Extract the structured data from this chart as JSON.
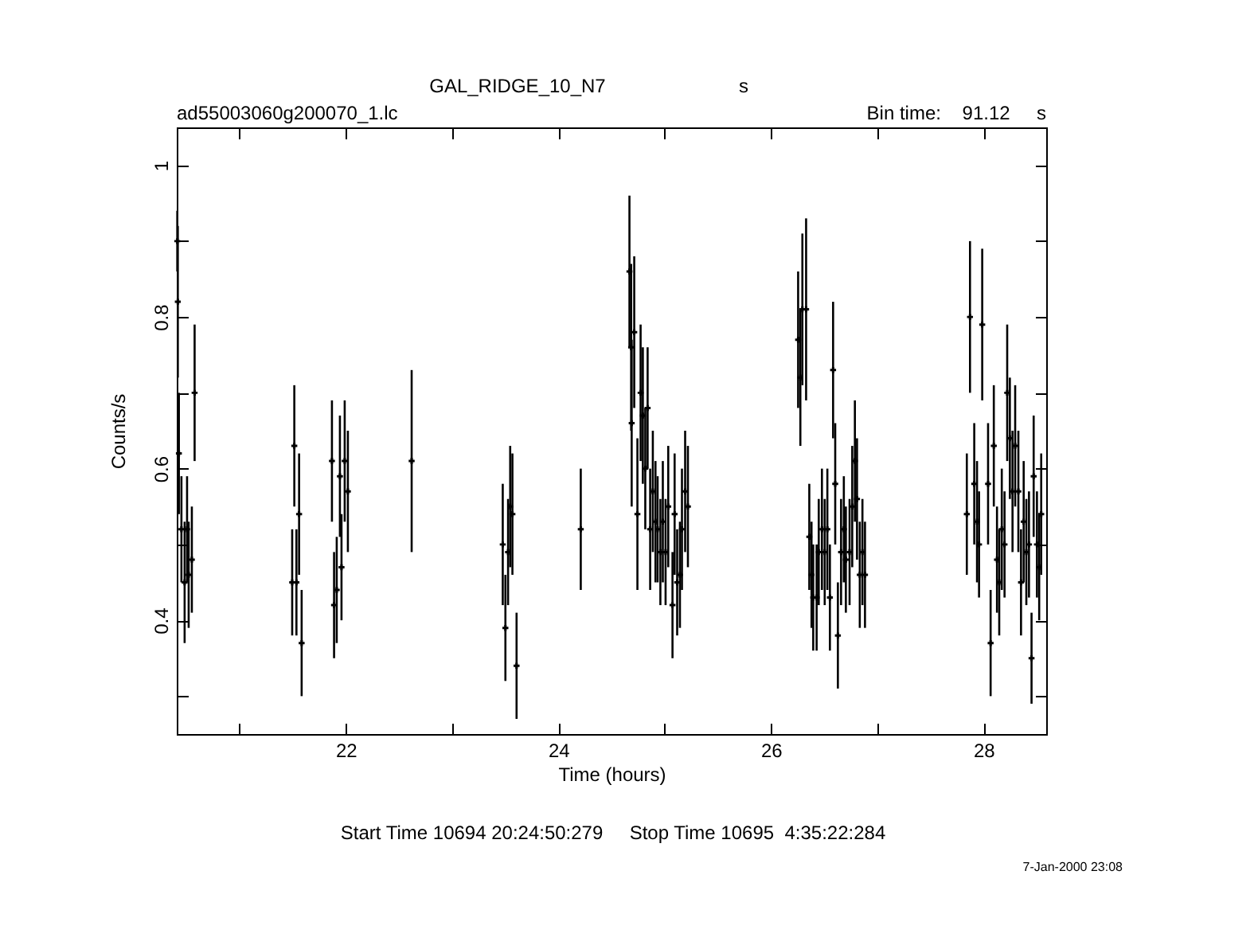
{
  "chart_data": {
    "type": "scatter",
    "title": "GAL_RIDGE_10_N7",
    "subtitle": "ad55003060g200070_1.lc",
    "xlabel": "Time (hours)",
    "ylabel": "Counts/s",
    "annotations": [
      "s",
      "Bin time:    91.12     s",
      "Start Time 10694 20:24:50:279     Stop Time 10695  4:35:22:284",
      "7-Jan-2000 23:08"
    ],
    "xlim": [
      20.41,
      28.59
    ],
    "ylim": [
      0.25,
      1.05
    ],
    "xticks": [
      {
        "value": 21,
        "label": null
      },
      22,
      {
        "value": 23,
        "label": null
      },
      24,
      {
        "value": 25,
        "label": null
      },
      26,
      {
        "value": 27,
        "label": null
      },
      28
    ],
    "yticks": [
      {
        "value": 0.3,
        "label": null
      },
      0.4,
      {
        "value": 0.5,
        "label": null
      },
      0.6,
      {
        "value": 0.7,
        "label": null
      },
      0.8,
      {
        "value": 0.9,
        "label": null
      },
      1
    ],
    "marker": "cross",
    "grid": false,
    "series": [
      {
        "color": "#000000",
        "x": [
          20.415,
          20.42,
          20.43,
          20.454,
          20.484,
          20.507,
          20.522,
          20.552,
          20.578,
          21.496,
          21.516,
          21.536,
          21.561,
          21.585,
          21.87,
          21.89,
          21.915,
          21.945,
          21.96,
          21.99,
          22.02,
          22.62,
          23.477,
          23.502,
          23.527,
          23.547,
          23.568,
          23.607,
          24.211,
          24.669,
          24.685,
          24.69,
          24.714,
          24.744,
          24.774,
          24.795,
          24.818,
          24.84,
          24.864,
          24.889,
          24.914,
          24.934,
          24.96,
          24.983,
          25.009,
          25.034,
          25.074,
          25.094,
          25.118,
          25.144,
          25.163,
          25.193,
          25.219,
          26.256,
          26.277,
          26.296,
          26.331,
          26.361,
          26.382,
          26.398,
          26.43,
          26.45,
          26.48,
          26.506,
          26.531,
          26.555,
          26.585,
          26.605,
          26.63,
          26.66,
          26.686,
          26.705,
          26.74,
          26.765,
          26.79,
          26.81,
          26.836,
          26.861,
          26.885,
          27.843,
          27.873,
          27.913,
          27.939,
          27.958,
          27.988,
          28.043,
          28.067,
          28.097,
          28.127,
          28.148,
          28.172,
          28.198,
          28.223,
          28.248,
          28.273,
          28.298,
          28.328,
          28.353,
          28.378,
          28.403,
          28.428,
          28.452,
          28.472,
          28.503,
          28.524,
          28.543
        ],
        "values": [
          0.9,
          0.82,
          0.62,
          0.52,
          0.45,
          0.52,
          0.46,
          0.48,
          0.7,
          0.45,
          0.63,
          0.45,
          0.54,
          0.37,
          0.61,
          0.42,
          0.44,
          0.59,
          0.47,
          0.61,
          0.57,
          0.61,
          0.5,
          0.39,
          0.49,
          0.55,
          0.54,
          0.34,
          0.52,
          0.86,
          0.76,
          0.66,
          0.78,
          0.54,
          0.7,
          0.67,
          0.6,
          0.68,
          0.52,
          0.57,
          0.53,
          0.52,
          0.49,
          0.53,
          0.49,
          0.55,
          0.42,
          0.54,
          0.45,
          0.46,
          0.52,
          0.57,
          0.55,
          0.77,
          0.72,
          0.81,
          0.81,
          0.51,
          0.46,
          0.43,
          0.43,
          0.49,
          0.52,
          0.49,
          0.52,
          0.43,
          0.73,
          0.58,
          0.38,
          0.49,
          0.52,
          0.48,
          0.49,
          0.55,
          0.61,
          0.56,
          0.46,
          0.49,
          0.46,
          0.54,
          0.8,
          0.58,
          0.53,
          0.5,
          0.79,
          0.58,
          0.37,
          0.63,
          0.48,
          0.45,
          0.52,
          0.5,
          0.7,
          0.64,
          0.57,
          0.63,
          0.57,
          0.45,
          0.53,
          0.49,
          0.5,
          0.35,
          0.59,
          0.5,
          0.47,
          0.54
        ],
        "errors": [
          0.04,
          0.1,
          0.08,
          0.07,
          0.08,
          0.07,
          0.07,
          0.07,
          0.09,
          0.07,
          0.08,
          0.07,
          0.08,
          0.07,
          0.08,
          0.07,
          0.07,
          0.08,
          0.07,
          0.08,
          0.08,
          0.12,
          0.08,
          0.07,
          0.07,
          0.08,
          0.08,
          0.07,
          0.08,
          0.1,
          0.11,
          0.11,
          0.1,
          0.1,
          0.09,
          0.09,
          0.08,
          0.08,
          0.08,
          0.08,
          0.08,
          0.07,
          0.07,
          0.08,
          0.07,
          0.08,
          0.07,
          0.08,
          0.07,
          0.07,
          0.08,
          0.08,
          0.08,
          0.09,
          0.09,
          0.1,
          0.12,
          0.07,
          0.07,
          0.07,
          0.07,
          0.07,
          0.08,
          0.07,
          0.08,
          0.07,
          0.09,
          0.08,
          0.07,
          0.07,
          0.07,
          0.07,
          0.07,
          0.08,
          0.08,
          0.08,
          0.07,
          0.07,
          0.07,
          0.08,
          0.1,
          0.08,
          0.08,
          0.07,
          0.1,
          0.08,
          0.07,
          0.08,
          0.07,
          0.07,
          0.08,
          0.07,
          0.09,
          0.08,
          0.08,
          0.08,
          0.08,
          0.07,
          0.08,
          0.07,
          0.07,
          0.06,
          0.08,
          0.07,
          0.07,
          0.08
        ]
      }
    ]
  }
}
